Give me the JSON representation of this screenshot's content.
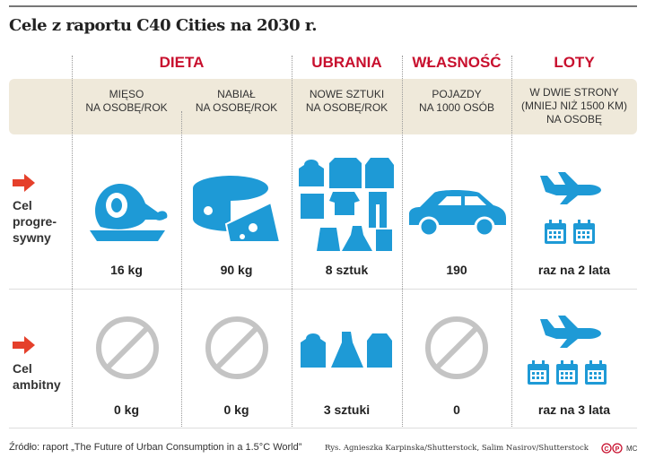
{
  "title": "Cele z raportu C40 Cities na 2030 r.",
  "categories": [
    {
      "label": "DIETA"
    },
    {
      "label": "UBRANIA"
    },
    {
      "label": "WŁASNOŚĆ"
    },
    {
      "label": "LOTY"
    }
  ],
  "columns": [
    {
      "line1": "MIĘSO",
      "line2": "NA OSOBĘ/ROK",
      "line3": ""
    },
    {
      "line1": "NABIAŁ",
      "line2": "NA OSOBĘ/ROK",
      "line3": ""
    },
    {
      "line1": "NOWE SZTUKI",
      "line2": "NA OSOBĘ/ROK",
      "line3": ""
    },
    {
      "line1": "POJAZDY",
      "line2": "NA 1000 OSÓB",
      "line3": ""
    },
    {
      "line1": "W DWIE STRONY",
      "line2": "(MNIEJ NIŻ 1500 KM)",
      "line3": "NA OSOBĘ"
    }
  ],
  "rows": [
    {
      "label1": "Cel",
      "label2": "progre-",
      "label3": "sywny",
      "values": [
        "16 kg",
        "90 kg",
        "8 sztuk",
        "190",
        "raz na 2 lata"
      ]
    },
    {
      "label1": "Cel",
      "label2": "ambitny",
      "label3": "",
      "values": [
        "0 kg",
        "0 kg",
        "3 sztuki",
        "0",
        "raz na 3 lata"
      ]
    }
  ],
  "footer": {
    "source": "Źródło: raport „The Future of Urban Consumption in a 1.5°C World”",
    "credit": "Rys. Agnieszka Karpinska/Shutterstock, Salim Nasirov/Shutterstock",
    "logo": "CP",
    "author": "MC"
  },
  "colors": {
    "accent": "#c8102e",
    "icon": "#1e9ad6",
    "prohibited": "#c4c4c4",
    "arrow": "#e5402b",
    "band": "#efe9da"
  }
}
